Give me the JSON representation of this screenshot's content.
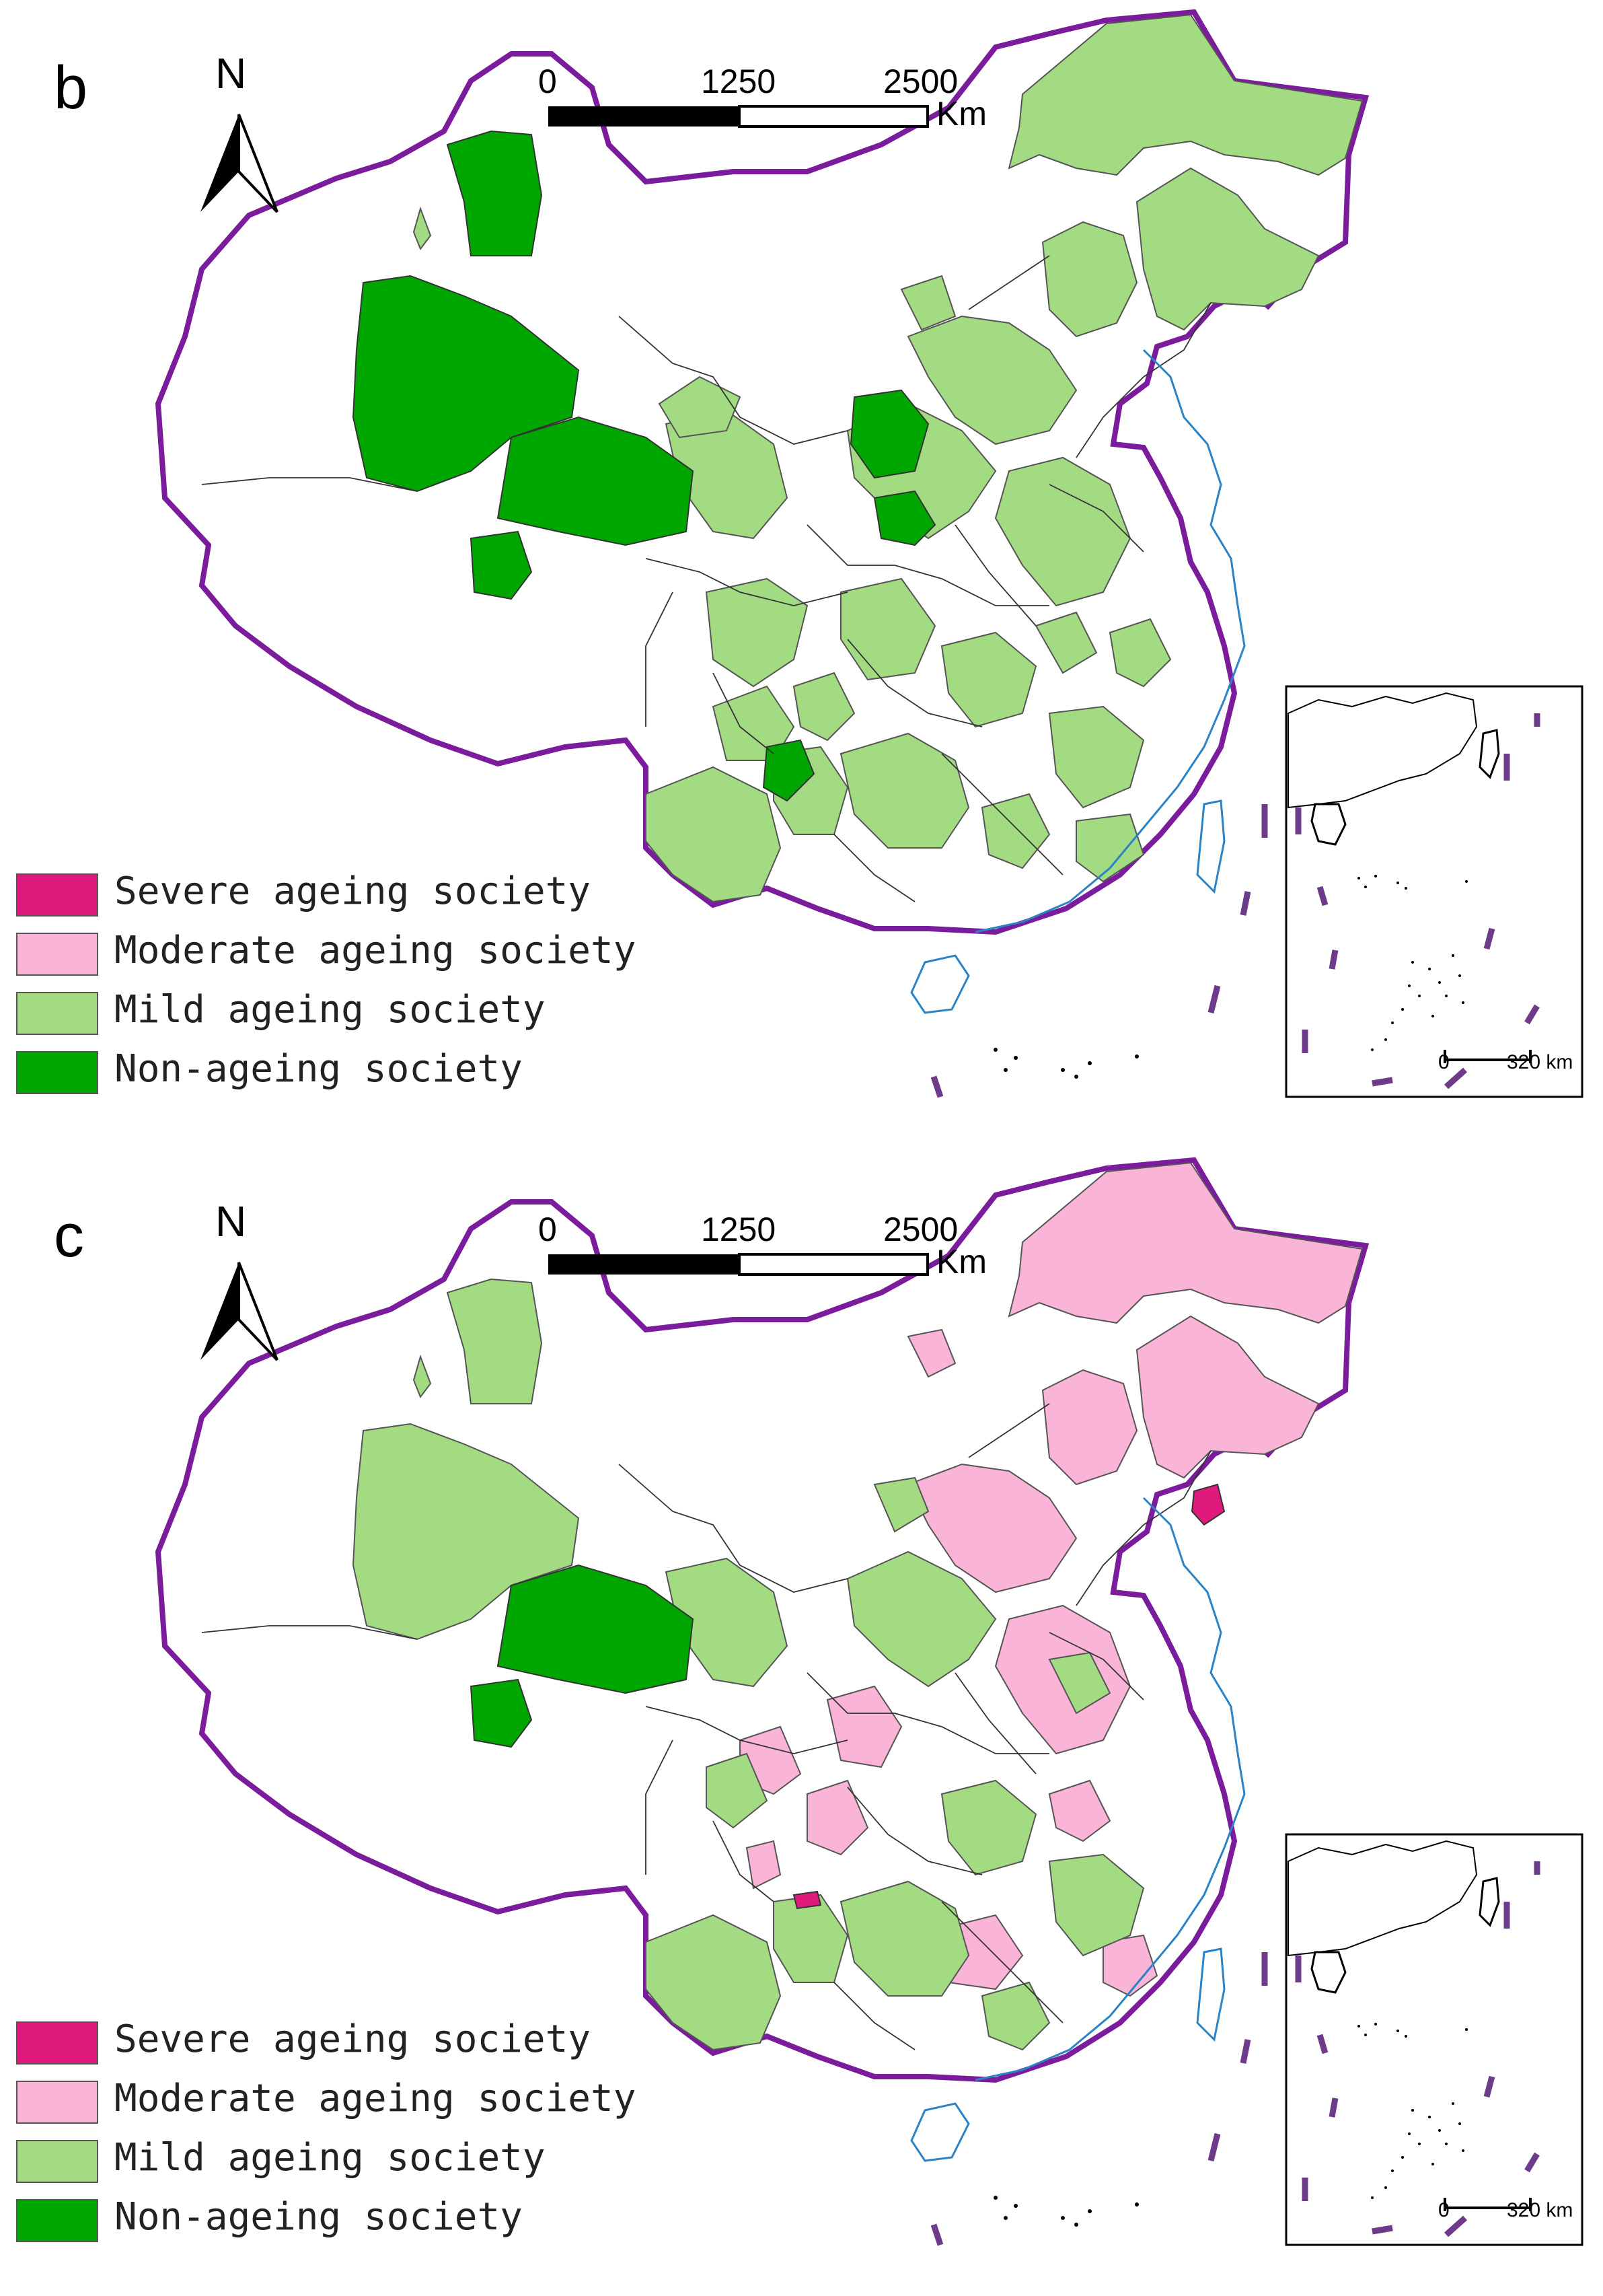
{
  "colors": {
    "severe": "#e0197d",
    "moderate": "#f9b4d7",
    "mild": "#a3db83",
    "non": "#00a600",
    "border": "#7b1c9c",
    "coast": "#2b83c6",
    "nine_dash": "#6e3a8a"
  },
  "icons": {
    "north_arrow": "north-arrow-icon",
    "scale_bar": "scale-bar-icon"
  },
  "panels": [
    {
      "letter": "b",
      "north_label": "N",
      "scale": {
        "tick_0": "0",
        "tick_1": "1250",
        "tick_2": "2500",
        "unit": "Km"
      },
      "inset_scale": {
        "tick_0": "0",
        "tick_1": "320 km"
      },
      "legend": [
        {
          "label": "Severe ageing society",
          "color": "#e0197d"
        },
        {
          "label": "Moderate ageing society",
          "color": "#f9b4d7"
        },
        {
          "label": "Mild ageing society",
          "color": "#a3db83"
        },
        {
          "label": "Non-ageing society",
          "color": "#00a600"
        }
      ]
    },
    {
      "letter": "c",
      "north_label": "N",
      "scale": {
        "tick_0": "0",
        "tick_1": "1250",
        "tick_2": "2500",
        "unit": "Km"
      },
      "inset_scale": {
        "tick_0": "0",
        "tick_1": "320 km"
      },
      "legend": [
        {
          "label": "Severe ageing society",
          "color": "#e0197d"
        },
        {
          "label": "Moderate ageing society",
          "color": "#f9b4d7"
        },
        {
          "label": "Mild ageing society",
          "color": "#a3db83"
        },
        {
          "label": "Non-ageing society",
          "color": "#00a600"
        }
      ]
    }
  ]
}
